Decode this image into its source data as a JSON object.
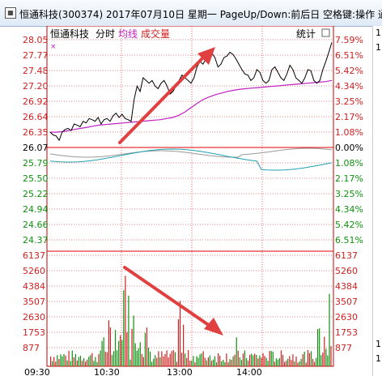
{
  "window": {
    "title": "恒通科技(300374) 2017年07月10日 星期一 PageUp/Down:前后日 空格键:操作 通",
    "icon": "chart-window-icon"
  },
  "header": {
    "stock_name": "恒通科技",
    "tab_minute": "分时",
    "tab_avg": "均线",
    "tab_vol": "成交量",
    "stats_label": "统计",
    "marker": "×"
  },
  "right_strip": [
    "1",
    "1",
    "1",
    "1"
  ],
  "colors": {
    "up": "#d02020",
    "down": "#109010",
    "flat": "#000000",
    "avg_line": "#c020c0",
    "grid": "#e00000",
    "arrow": "#e04040"
  },
  "chart_data": [
    {
      "type": "line",
      "title": "",
      "price_axis_left": [
        "28.05",
        "27.77",
        "27.48",
        "27.20",
        "26.92",
        "26.64",
        "26.35",
        "26.07",
        "25.79",
        "25.50",
        "25.22",
        "24.94",
        "24.66",
        "24.37"
      ],
      "pct_axis_right": [
        "7.59%",
        "6.51%",
        "5.42%",
        "4.34%",
        "3.25%",
        "2.17%",
        "1.08%",
        "0.00%",
        "1.08%",
        "2.17%",
        "3.25%",
        "4.34%",
        "5.42%",
        "6.51%"
      ],
      "ylim": [
        24.37,
        28.05
      ],
      "prev_close": 26.07,
      "x_ticks": [
        "09:30",
        "10:30",
        "13:00",
        "14:00"
      ],
      "series": [
        {
          "kind": "price",
          "values": [
            26.35,
            26.3,
            26.28,
            26.2,
            26.35,
            26.4,
            26.42,
            26.38,
            26.5,
            26.48,
            26.45,
            26.55,
            26.52,
            26.6,
            26.58,
            26.55,
            26.62,
            26.5,
            26.58,
            26.6,
            26.55,
            26.65,
            26.7,
            26.62,
            26.68,
            26.6,
            26.58,
            26.55,
            26.95,
            27.2,
            27.1,
            27.35,
            27.3,
            27.25,
            27.3,
            27.2,
            27.15,
            27.25,
            27.3,
            27.2,
            27.05,
            27.1,
            27.2,
            27.3,
            27.4,
            27.35,
            27.3,
            27.25,
            27.35,
            27.55,
            27.65,
            27.6,
            27.7,
            27.75,
            27.8,
            27.72,
            27.55,
            27.6,
            27.72,
            27.75,
            27.82,
            27.78,
            27.7,
            27.6,
            27.5,
            27.42,
            27.4,
            27.3,
            27.35,
            27.5,
            27.45,
            27.3,
            27.25,
            27.3,
            27.5,
            27.55,
            27.45,
            27.35,
            27.3,
            27.42,
            27.58,
            27.5,
            27.35,
            27.3,
            27.25,
            27.35,
            27.5,
            27.48,
            27.3,
            27.25,
            27.3,
            27.5,
            27.65,
            27.82,
            28.0
          ]
        },
        {
          "kind": "avg",
          "values": [
            26.35,
            26.35,
            26.36,
            26.38,
            26.4,
            26.42,
            26.44,
            26.46,
            26.48,
            26.49,
            26.5,
            26.51,
            26.52,
            26.53,
            26.54,
            26.55,
            26.56,
            26.57,
            26.58,
            26.6,
            26.62,
            26.66,
            26.72,
            26.8,
            26.88,
            26.95,
            27.0,
            27.04,
            27.07,
            27.1,
            27.12,
            27.14,
            27.15,
            27.16,
            27.17,
            27.18,
            27.19,
            27.2,
            27.21,
            27.22,
            27.23,
            27.24,
            27.25,
            27.26,
            27.27,
            27.28,
            27.3
          ]
        }
      ],
      "annotation": "arrow pointing up-right toward high"
    },
    {
      "type": "bar",
      "title": "",
      "volume_axis": [
        "6137",
        "5260",
        "4384",
        "3507",
        "2630",
        "1753",
        "877"
      ],
      "ylim": [
        0,
        6137
      ],
      "annotation": "arrow pointing down-right from volume spike"
    }
  ]
}
